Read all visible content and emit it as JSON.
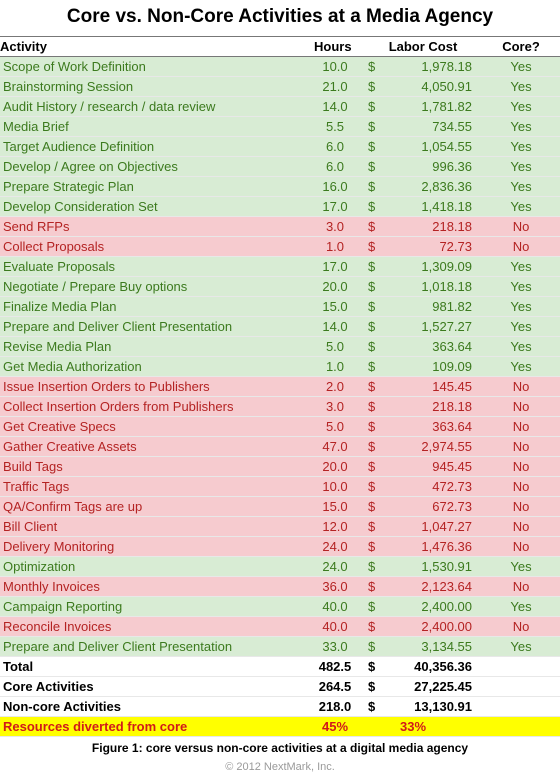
{
  "title": "Core vs. Non-Core Activities at a Media Agency",
  "headers": {
    "activity": "Activity",
    "hours": "Hours",
    "labor": "Labor Cost",
    "core": "Core?"
  },
  "currency": "$",
  "colors": {
    "yes_bg": "#d8ecd4",
    "yes_text": "#3c7a1e",
    "no_bg": "#f6cbcf",
    "no_text": "#b42323",
    "highlight": "#ffff00",
    "highlight_text": "#d11a1a"
  },
  "chart_data": {
    "type": "table",
    "columns": [
      "Activity",
      "Hours",
      "Labor Cost",
      "Core?"
    ],
    "rows": [
      [
        "Scope of Work Definition",
        "10.0",
        "1,978.18",
        "Yes"
      ],
      [
        "Brainstorming Session",
        "21.0",
        "4,050.91",
        "Yes"
      ],
      [
        "Audit History / research / data review",
        "14.0",
        "1,781.82",
        "Yes"
      ],
      [
        "Media Brief",
        "5.5",
        "734.55",
        "Yes"
      ],
      [
        "Target Audience Definition",
        "6.0",
        "1,054.55",
        "Yes"
      ],
      [
        "Develop / Agree on Objectives",
        "6.0",
        "996.36",
        "Yes"
      ],
      [
        "Prepare Strategic Plan",
        "16.0",
        "2,836.36",
        "Yes"
      ],
      [
        "Develop Consideration Set",
        "17.0",
        "1,418.18",
        "Yes"
      ],
      [
        "Send RFPs",
        "3.0",
        "218.18",
        "No"
      ],
      [
        "Collect Proposals",
        "1.0",
        "72.73",
        "No"
      ],
      [
        "Evaluate Proposals",
        "17.0",
        "1,309.09",
        "Yes"
      ],
      [
        "Negotiate / Prepare Buy options",
        "20.0",
        "1,018.18",
        "Yes"
      ],
      [
        "Finalize Media Plan",
        "15.0",
        "981.82",
        "Yes"
      ],
      [
        "Prepare and Deliver Client Presentation",
        "14.0",
        "1,527.27",
        "Yes"
      ],
      [
        "Revise Media Plan",
        "5.0",
        "363.64",
        "Yes"
      ],
      [
        "Get Media Authorization",
        "1.0",
        "109.09",
        "Yes"
      ],
      [
        "Issue Insertion Orders to Publishers",
        "2.0",
        "145.45",
        "No"
      ],
      [
        "Collect Insertion Orders from Publishers",
        "3.0",
        "218.18",
        "No"
      ],
      [
        "Get Creative Specs",
        "5.0",
        "363.64",
        "No"
      ],
      [
        "Gather Creative Assets",
        "47.0",
        "2,974.55",
        "No"
      ],
      [
        "Build Tags",
        "20.0",
        "945.45",
        "No"
      ],
      [
        "Traffic Tags",
        "10.0",
        "472.73",
        "No"
      ],
      [
        "QA/Confirm Tags are up",
        "15.0",
        "672.73",
        "No"
      ],
      [
        "Bill Client",
        "12.0",
        "1,047.27",
        "No"
      ],
      [
        "Delivery Monitoring",
        "24.0",
        "1,476.36",
        "No"
      ],
      [
        "Optimization",
        "24.0",
        "1,530.91",
        "Yes"
      ],
      [
        "Monthly Invoices",
        "36.0",
        "2,123.64",
        "No"
      ],
      [
        "Campaign Reporting",
        "40.0",
        "2,400.00",
        "Yes"
      ],
      [
        "Reconcile Invoices",
        "40.0",
        "2,400.00",
        "No"
      ],
      [
        "Prepare and Deliver Client Presentation",
        "33.0",
        "3,134.55",
        "Yes"
      ]
    ],
    "summary": [
      {
        "label": "Total",
        "hours": "482.5",
        "cost": "40,356.36"
      },
      {
        "label": "Core Activities",
        "hours": "264.5",
        "cost": "27,225.45"
      },
      {
        "label": "Non-core Activities",
        "hours": "218.0",
        "cost": "13,130.91"
      }
    ],
    "diverted": {
      "label": "Resources diverted from core",
      "hours": "45%",
      "cost": "33%"
    }
  },
  "caption": "Figure 1: core versus non-core activities at a digital media agency",
  "copyright": "© 2012 NextMark, Inc."
}
